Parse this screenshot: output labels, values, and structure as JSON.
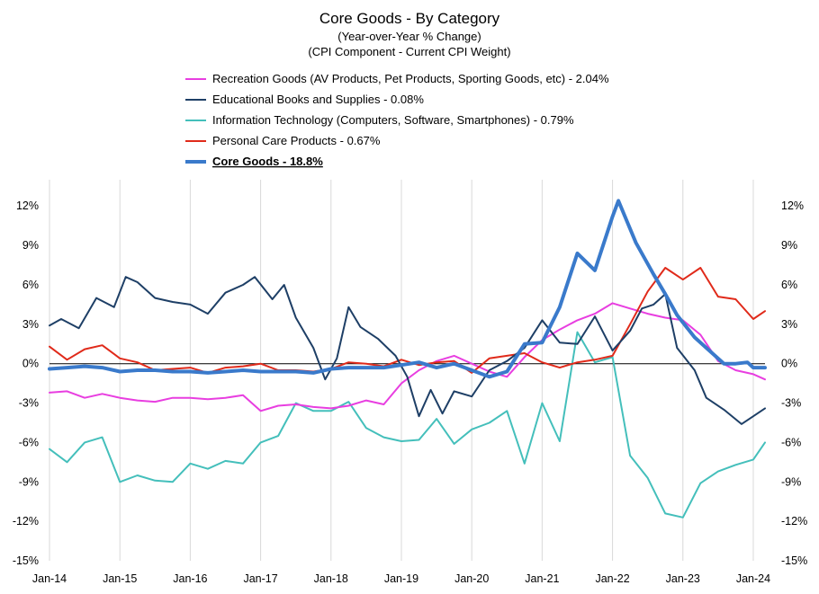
{
  "chart_data": {
    "type": "line",
    "title": "Core Goods - By Category",
    "subtitle_lines": [
      "(Year-over-Year % Change)",
      "(CPI Component - Current CPI Weight)"
    ],
    "x_tick_labels": [
      "Jan-14",
      "Jan-15",
      "Jan-16",
      "Jan-17",
      "Jan-18",
      "Jan-19",
      "Jan-20",
      "Jan-21",
      "Jan-22",
      "Jan-23",
      "Jan-24"
    ],
    "x_range": [
      "2014-01",
      "2024-03"
    ],
    "ylim": [
      -15,
      14
    ],
    "y_ticks": [
      -15,
      -12,
      -9,
      -6,
      -3,
      0,
      3,
      6,
      9,
      12
    ],
    "y_tick_labels": [
      "-15%",
      "-12%",
      "-9%",
      "-6%",
      "-3%",
      "0%",
      "3%",
      "6%",
      "9%",
      "12%"
    ],
    "grid": "vertical",
    "legend_placement": "top-center",
    "series": [
      {
        "name": "Recreation Goods (AV Products, Pet Products, Sporting Goods, etc) - 2.04%",
        "color": "#e83ee0",
        "points": [
          [
            "2014-01",
            -2.2
          ],
          [
            "2014-04",
            -2.1
          ],
          [
            "2014-07",
            -2.6
          ],
          [
            "2014-10",
            -2.3
          ],
          [
            "2015-01",
            -2.6
          ],
          [
            "2015-04",
            -2.8
          ],
          [
            "2015-07",
            -2.9
          ],
          [
            "2015-10",
            -2.6
          ],
          [
            "2016-01",
            -2.6
          ],
          [
            "2016-04",
            -2.7
          ],
          [
            "2016-07",
            -2.6
          ],
          [
            "2016-10",
            -2.4
          ],
          [
            "2017-01",
            -3.6
          ],
          [
            "2017-04",
            -3.2
          ],
          [
            "2017-07",
            -3.1
          ],
          [
            "2017-10",
            -3.3
          ],
          [
            "2018-01",
            -3.4
          ],
          [
            "2018-04",
            -3.2
          ],
          [
            "2018-07",
            -2.8
          ],
          [
            "2018-10",
            -3.1
          ],
          [
            "2019-01",
            -1.5
          ],
          [
            "2019-04",
            -0.5
          ],
          [
            "2019-07",
            0.2
          ],
          [
            "2019-10",
            0.6
          ],
          [
            "2020-01",
            0.0
          ],
          [
            "2020-04",
            -0.6
          ],
          [
            "2020-07",
            -1.0
          ],
          [
            "2020-10",
            0.5
          ],
          [
            "2021-01",
            1.8
          ],
          [
            "2021-04",
            2.6
          ],
          [
            "2021-07",
            3.3
          ],
          [
            "2021-10",
            3.8
          ],
          [
            "2022-01",
            4.6
          ],
          [
            "2022-04",
            4.2
          ],
          [
            "2022-07",
            3.8
          ],
          [
            "2022-10",
            3.5
          ],
          [
            "2023-01",
            3.3
          ],
          [
            "2023-04",
            2.2
          ],
          [
            "2023-07",
            0.2
          ],
          [
            "2023-10",
            -0.5
          ],
          [
            "2024-01",
            -0.8
          ],
          [
            "2024-03",
            -1.2
          ]
        ]
      },
      {
        "name": "Educational Books and Supplies - 0.08%",
        "color": "#1e3f66",
        "points": [
          [
            "2014-01",
            2.9
          ],
          [
            "2014-03",
            3.4
          ],
          [
            "2014-06",
            2.7
          ],
          [
            "2014-09",
            5.0
          ],
          [
            "2014-12",
            4.3
          ],
          [
            "2015-02",
            6.6
          ],
          [
            "2015-04",
            6.2
          ],
          [
            "2015-07",
            5.0
          ],
          [
            "2015-10",
            4.7
          ],
          [
            "2016-01",
            4.5
          ],
          [
            "2016-04",
            3.8
          ],
          [
            "2016-07",
            5.4
          ],
          [
            "2016-10",
            6.0
          ],
          [
            "2016-12",
            6.6
          ],
          [
            "2017-03",
            4.9
          ],
          [
            "2017-05",
            6.0
          ],
          [
            "2017-07",
            3.5
          ],
          [
            "2017-10",
            1.2
          ],
          [
            "2017-12",
            -1.2
          ],
          [
            "2018-02",
            0.4
          ],
          [
            "2018-04",
            4.3
          ],
          [
            "2018-06",
            2.8
          ],
          [
            "2018-09",
            1.9
          ],
          [
            "2018-12",
            0.6
          ],
          [
            "2019-02",
            -1.0
          ],
          [
            "2019-04",
            -4.0
          ],
          [
            "2019-06",
            -2.0
          ],
          [
            "2019-08",
            -3.8
          ],
          [
            "2019-10",
            -2.1
          ],
          [
            "2020-01",
            -2.5
          ],
          [
            "2020-04",
            -0.5
          ],
          [
            "2020-07",
            0.2
          ],
          [
            "2020-10",
            1.2
          ],
          [
            "2021-01",
            3.3
          ],
          [
            "2021-04",
            1.6
          ],
          [
            "2021-07",
            1.5
          ],
          [
            "2021-10",
            3.6
          ],
          [
            "2022-01",
            1.0
          ],
          [
            "2022-04",
            2.5
          ],
          [
            "2022-06",
            4.2
          ],
          [
            "2022-08",
            4.5
          ],
          [
            "2022-10",
            5.3
          ],
          [
            "2022-12",
            1.2
          ],
          [
            "2023-03",
            -0.5
          ],
          [
            "2023-05",
            -2.6
          ],
          [
            "2023-08",
            -3.5
          ],
          [
            "2023-11",
            -4.6
          ],
          [
            "2024-01",
            -4.0
          ],
          [
            "2024-03",
            -3.4
          ]
        ]
      },
      {
        "name": "Information Technology (Computers, Software, Smartphones) - 0.79%",
        "color": "#44bfbb",
        "points": [
          [
            "2014-01",
            -6.5
          ],
          [
            "2014-04",
            -7.5
          ],
          [
            "2014-07",
            -6.0
          ],
          [
            "2014-10",
            -5.6
          ],
          [
            "2015-01",
            -9.0
          ],
          [
            "2015-04",
            -8.5
          ],
          [
            "2015-07",
            -8.9
          ],
          [
            "2015-10",
            -9.0
          ],
          [
            "2016-01",
            -7.6
          ],
          [
            "2016-04",
            -8.0
          ],
          [
            "2016-07",
            -7.4
          ],
          [
            "2016-10",
            -7.6
          ],
          [
            "2017-01",
            -6.0
          ],
          [
            "2017-04",
            -5.5
          ],
          [
            "2017-07",
            -3.0
          ],
          [
            "2017-10",
            -3.6
          ],
          [
            "2018-01",
            -3.6
          ],
          [
            "2018-04",
            -2.9
          ],
          [
            "2018-07",
            -4.9
          ],
          [
            "2018-10",
            -5.6
          ],
          [
            "2019-01",
            -5.9
          ],
          [
            "2019-04",
            -5.8
          ],
          [
            "2019-07",
            -4.2
          ],
          [
            "2019-10",
            -6.1
          ],
          [
            "2020-01",
            -5.0
          ],
          [
            "2020-04",
            -4.5
          ],
          [
            "2020-07",
            -3.6
          ],
          [
            "2020-10",
            -7.6
          ],
          [
            "2021-01",
            -3.0
          ],
          [
            "2021-04",
            -5.9
          ],
          [
            "2021-07",
            2.4
          ],
          [
            "2021-10",
            0.1
          ],
          [
            "2022-01",
            0.5
          ],
          [
            "2022-04",
            -7.0
          ],
          [
            "2022-07",
            -8.7
          ],
          [
            "2022-10",
            -11.4
          ],
          [
            "2023-01",
            -11.7
          ],
          [
            "2023-04",
            -9.1
          ],
          [
            "2023-07",
            -8.2
          ],
          [
            "2023-10",
            -7.7
          ],
          [
            "2024-01",
            -7.3
          ],
          [
            "2024-03",
            -6.0
          ]
        ]
      },
      {
        "name": "Personal Care Products - 0.67%",
        "color": "#e02a1a",
        "points": [
          [
            "2014-01",
            1.3
          ],
          [
            "2014-04",
            0.3
          ],
          [
            "2014-07",
            1.1
          ],
          [
            "2014-10",
            1.4
          ],
          [
            "2015-01",
            0.4
          ],
          [
            "2015-04",
            0.1
          ],
          [
            "2015-07",
            -0.5
          ],
          [
            "2015-10",
            -0.4
          ],
          [
            "2016-01",
            -0.3
          ],
          [
            "2016-04",
            -0.7
          ],
          [
            "2016-07",
            -0.3
          ],
          [
            "2016-10",
            -0.2
          ],
          [
            "2017-01",
            0.0
          ],
          [
            "2017-04",
            -0.5
          ],
          [
            "2017-07",
            -0.5
          ],
          [
            "2017-10",
            -0.6
          ],
          [
            "2018-01",
            -0.4
          ],
          [
            "2018-04",
            0.1
          ],
          [
            "2018-07",
            0.0
          ],
          [
            "2018-10",
            -0.2
          ],
          [
            "2019-01",
            0.3
          ],
          [
            "2019-04",
            -0.1
          ],
          [
            "2019-07",
            0.1
          ],
          [
            "2019-10",
            0.2
          ],
          [
            "2020-01",
            -0.7
          ],
          [
            "2020-04",
            0.4
          ],
          [
            "2020-07",
            0.6
          ],
          [
            "2020-10",
            0.8
          ],
          [
            "2021-01",
            0.1
          ],
          [
            "2021-04",
            -0.3
          ],
          [
            "2021-07",
            0.1
          ],
          [
            "2021-10",
            0.3
          ],
          [
            "2022-01",
            0.6
          ],
          [
            "2022-04",
            3.0
          ],
          [
            "2022-07",
            5.5
          ],
          [
            "2022-10",
            7.3
          ],
          [
            "2023-01",
            6.4
          ],
          [
            "2023-04",
            7.3
          ],
          [
            "2023-07",
            5.1
          ],
          [
            "2023-10",
            4.9
          ],
          [
            "2024-01",
            3.4
          ],
          [
            "2024-03",
            4.0
          ]
        ]
      },
      {
        "name": "Core Goods - 18.8%",
        "color": "#3a7acb",
        "bold": true,
        "points": [
          [
            "2014-01",
            -0.4
          ],
          [
            "2014-04",
            -0.3
          ],
          [
            "2014-07",
            -0.2
          ],
          [
            "2014-10",
            -0.3
          ],
          [
            "2015-01",
            -0.6
          ],
          [
            "2015-04",
            -0.5
          ],
          [
            "2015-07",
            -0.5
          ],
          [
            "2015-10",
            -0.6
          ],
          [
            "2016-01",
            -0.6
          ],
          [
            "2016-04",
            -0.7
          ],
          [
            "2016-07",
            -0.6
          ],
          [
            "2016-10",
            -0.5
          ],
          [
            "2017-01",
            -0.6
          ],
          [
            "2017-04",
            -0.6
          ],
          [
            "2017-07",
            -0.6
          ],
          [
            "2017-10",
            -0.7
          ],
          [
            "2018-01",
            -0.4
          ],
          [
            "2018-04",
            -0.3
          ],
          [
            "2018-07",
            -0.3
          ],
          [
            "2018-10",
            -0.3
          ],
          [
            "2019-01",
            -0.1
          ],
          [
            "2019-04",
            0.1
          ],
          [
            "2019-07",
            -0.3
          ],
          [
            "2019-10",
            0.0
          ],
          [
            "2020-01",
            -0.5
          ],
          [
            "2020-04",
            -1.0
          ],
          [
            "2020-07",
            -0.6
          ],
          [
            "2020-10",
            1.5
          ],
          [
            "2021-01",
            1.6
          ],
          [
            "2021-04",
            4.3
          ],
          [
            "2021-07",
            8.4
          ],
          [
            "2021-10",
            7.1
          ],
          [
            "2022-01",
            11.2
          ],
          [
            "2022-02",
            12.4
          ],
          [
            "2022-05",
            9.2
          ],
          [
            "2022-08",
            6.8
          ],
          [
            "2022-10",
            5.3
          ],
          [
            "2022-12",
            3.7
          ],
          [
            "2023-03",
            2.0
          ],
          [
            "2023-05",
            1.2
          ],
          [
            "2023-08",
            0.0
          ],
          [
            "2023-10",
            0.0
          ],
          [
            "2023-12",
            0.1
          ],
          [
            "2024-01",
            -0.3
          ],
          [
            "2024-03",
            -0.3
          ]
        ]
      }
    ]
  }
}
